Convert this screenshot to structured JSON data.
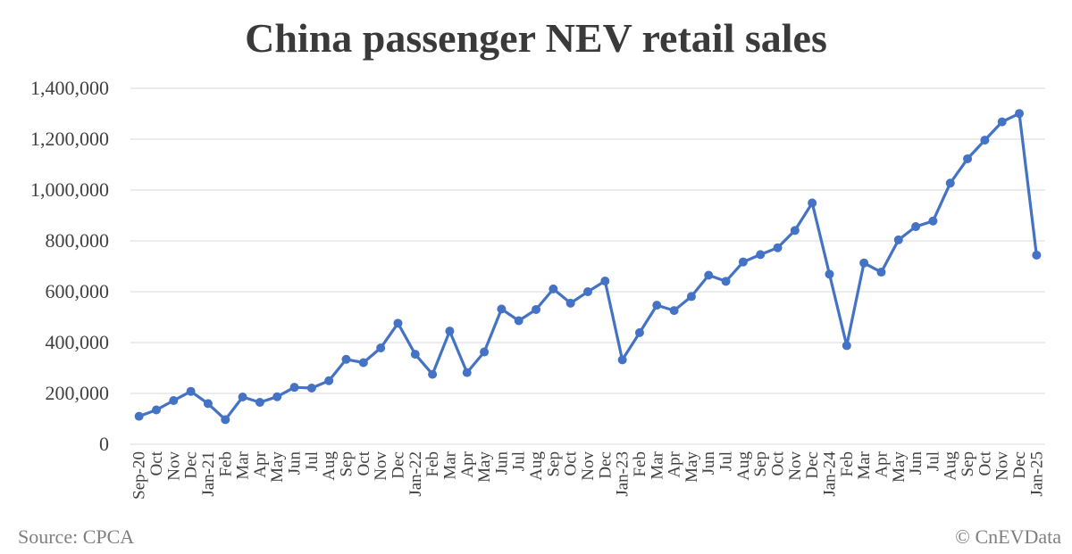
{
  "chart_data": {
    "type": "line",
    "title": "China passenger NEV retail sales",
    "xlabel": "",
    "ylabel": "",
    "ylim": [
      0,
      1400000
    ],
    "yticks": [
      "0",
      "200,000",
      "400,000",
      "600,000",
      "800,000",
      "1,000,000",
      "1,200,000",
      "1,400,000"
    ],
    "ytick_values": [
      0,
      200000,
      400000,
      600000,
      800000,
      1000000,
      1200000,
      1400000
    ],
    "grid": true,
    "legend": "none",
    "categories": [
      "Sep-20",
      "Oct",
      "Nov",
      "Dec",
      "Jan-21",
      "Feb",
      "Mar",
      "Apr",
      "May",
      "Jun",
      "Jul",
      "Aug",
      "Sep",
      "Oct",
      "Nov",
      "Dec",
      "Jan-22",
      "Feb",
      "Mar",
      "Apr",
      "May",
      "Jun",
      "Jul",
      "Aug",
      "Sep",
      "Oct",
      "Nov",
      "Dec",
      "Jan-23",
      "Feb",
      "Mar",
      "Apr",
      "May",
      "Jun",
      "Jul",
      "Aug",
      "Sep",
      "Oct",
      "Nov",
      "Dec",
      "Jan-24",
      "Feb",
      "Mar",
      "Apr",
      "May",
      "Jun",
      "Jul",
      "Aug",
      "Sep",
      "Oct",
      "Nov",
      "Dec",
      "Jan-25"
    ],
    "series": [
      {
        "color": "#4472c4",
        "values": [
          110000,
          135000,
          172000,
          208000,
          160000,
          97000,
          186000,
          165000,
          187000,
          224000,
          221000,
          250000,
          334000,
          321000,
          379000,
          476000,
          354000,
          275000,
          445000,
          282000,
          363000,
          532000,
          486000,
          530000,
          611000,
          555000,
          600000,
          642000,
          332000,
          439000,
          547000,
          526000,
          581000,
          665000,
          641000,
          717000,
          746000,
          773000,
          841000,
          949000,
          669000,
          388000,
          713000,
          677000,
          804000,
          856000,
          878000,
          1027000,
          1123000,
          1196000,
          1268000,
          1301000,
          744000
        ]
      }
    ]
  },
  "footer": {
    "source": "Source: CPCA",
    "copyright": "© CnEVData"
  }
}
